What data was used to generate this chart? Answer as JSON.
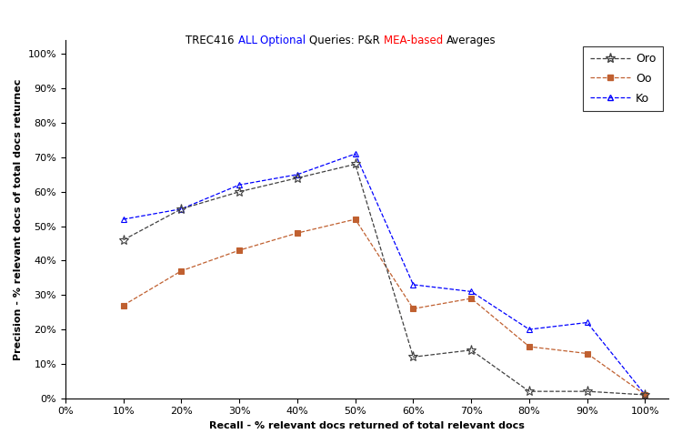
{
  "title_parts": [
    {
      "text": "TREC416 ",
      "color": "#000000"
    },
    {
      "text": "ALL ",
      "color": "#0000FF"
    },
    {
      "text": "Optional ",
      "color": "#0000FF"
    },
    {
      "text": "Queries: P&R ",
      "color": "#000000"
    },
    {
      "text": "MEA-based ",
      "color": "#FF0000"
    },
    {
      "text": "Averages",
      "color": "#000000"
    }
  ],
  "xlabel": "Recall - % relevant docs returned of total relevant docs",
  "ylabel": "Precision - % relevant docs of total docs returnec",
  "recall": [
    0.1,
    0.2,
    0.3,
    0.4,
    0.5,
    0.6,
    0.7,
    0.8,
    0.9,
    1.0
  ],
  "Oro": [
    0.46,
    0.55,
    0.6,
    0.64,
    0.68,
    0.12,
    0.14,
    0.02,
    0.02,
    0.01
  ],
  "Oo": [
    0.27,
    0.37,
    0.43,
    0.48,
    0.52,
    0.26,
    0.29,
    0.15,
    0.13,
    0.01
  ],
  "Ko": [
    0.52,
    0.55,
    0.62,
    0.65,
    0.71,
    0.33,
    0.31,
    0.2,
    0.22,
    0.01
  ],
  "Oro_color": "#404040",
  "Oo_color": "#C06030",
  "Ko_color": "#0000FF",
  "figsize": [
    7.5,
    4.88
  ],
  "dpi": 100,
  "title_fontsize": 8.5,
  "label_fontsize": 8,
  "tick_fontsize": 8,
  "legend_fontsize": 9
}
